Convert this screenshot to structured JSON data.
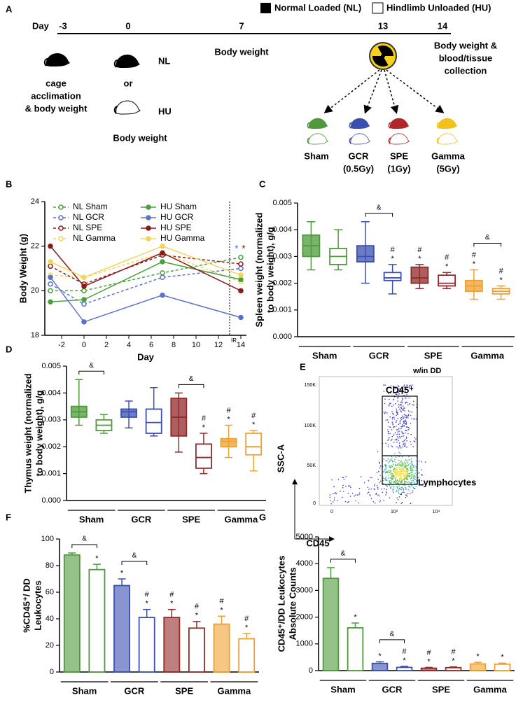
{
  "diagram": {
    "panel": "A",
    "legend": [
      "Normal Loaded (NL)",
      "Hindlimb Unloaded (HU)"
    ],
    "day_label": "Day",
    "days": [
      "-3",
      "0",
      "7",
      "13",
      "14"
    ],
    "mid_text": "Body weight",
    "acclimation": [
      "cage",
      "acclimation",
      "& body weight"
    ],
    "nl": "NL",
    "or": "or",
    "hu": "HU",
    "start_text": "Body weight",
    "end_text": [
      "Body weight &",
      "blood/tissue",
      "collection"
    ],
    "groups": [
      [
        "Sham"
      ],
      [
        "GCR",
        "(0.5Gy)"
      ],
      [
        "SPE",
        "(1Gy)"
      ],
      [
        "Gamma",
        "(5Gy)"
      ]
    ]
  },
  "flow": {
    "panel": "E",
    "gate_title": "w/in DD",
    "gate": "CD45⁺",
    "subgate": "Lymphocytes",
    "ylabel": "SSC-A",
    "xlabel": "CD45",
    "yticks": [
      "150K",
      "100K",
      "50K",
      "0"
    ],
    "xticks": [
      "0",
      "10³",
      "10⁴"
    ]
  },
  "chart_data": [
    {
      "panel": "B",
      "type": "line",
      "xlabel": "Day",
      "ylabel": [
        "Body Weight (g)"
      ],
      "x": [
        -3,
        0,
        7,
        14
      ],
      "xlim": [
        -3.5,
        14.5
      ],
      "xticks": [
        -2,
        0,
        2,
        4,
        6,
        8,
        10,
        12,
        14
      ],
      "ylim": [
        18,
        24
      ],
      "yticks": [
        18,
        20,
        22,
        24
      ],
      "vline": {
        "x": 13,
        "label": "IR"
      },
      "annotations": [
        {
          "text": "*",
          "color": "#5b72c6"
        },
        {
          "text": "*",
          "color": "#8b1a1a"
        }
      ],
      "series": [
        {
          "name": "NL Sham",
          "color": "#4aa03a",
          "dashed": true,
          "values": [
            20.0,
            20.0,
            20.8,
            21.5
          ]
        },
        {
          "name": "NL GCR",
          "color": "#5b72c6",
          "dashed": true,
          "values": [
            20.3,
            19.4,
            20.6,
            21.0
          ]
        },
        {
          "name": "NL SPE",
          "color": "#8b1a1a",
          "dashed": true,
          "values": [
            21.1,
            20.3,
            21.6,
            21.2
          ]
        },
        {
          "name": "NL Gamma",
          "color": "#f5d45c",
          "dashed": true,
          "values": [
            20.7,
            20.6,
            21.7,
            20.4
          ]
        },
        {
          "name": "HU Sham",
          "color": "#4aa03a",
          "dashed": false,
          "values": [
            19.5,
            19.6,
            21.3,
            20.5
          ]
        },
        {
          "name": "HU GCR",
          "color": "#5b72c6",
          "dashed": false,
          "values": [
            20.6,
            18.6,
            19.8,
            18.8
          ]
        },
        {
          "name": "HU SPE",
          "color": "#8b1a1a",
          "dashed": false,
          "values": [
            22.0,
            20.2,
            21.7,
            20.0
          ]
        },
        {
          "name": "HU Gamma",
          "color": "#f5d45c",
          "dashed": false,
          "values": [
            21.3,
            20.6,
            22.0,
            20.7
          ]
        }
      ]
    },
    {
      "panel": "C",
      "type": "box",
      "ylabel": [
        "Spleen weight (normalized",
        "to body weight), g/g"
      ],
      "categories": [
        "Sham",
        "GCR",
        "SPE",
        "Gamma"
      ],
      "colors": [
        "#4e9a3a",
        "#3b4fb0",
        "#922a2a",
        "#f0a030"
      ],
      "ylim": [
        0,
        0.005
      ],
      "yticks": [
        {
          "value": 0,
          "label": "0.000"
        },
        {
          "value": 0.001,
          "label": "0.001"
        },
        {
          "value": 0.002,
          "label": "0.002"
        },
        {
          "value": 0.003,
          "label": "0.003"
        },
        {
          "value": 0.004,
          "label": "0.004"
        },
        {
          "value": 0.005,
          "label": "0.005"
        }
      ],
      "brackets": [
        {
          "label": "&",
          "category": 1
        },
        {
          "label": "&",
          "category": 3
        }
      ],
      "series": [
        {
          "style": "filled",
          "min": [
            0.0025,
            0.002,
            0.0018,
            0.0014
          ],
          "q1": [
            0.003,
            0.0028,
            0.002,
            0.0017
          ],
          "median": [
            0.0034,
            0.003,
            0.0022,
            0.0019
          ],
          "q3": [
            0.0038,
            0.0034,
            0.0026,
            0.0021
          ],
          "max": [
            0.0043,
            0.0043,
            0.0027,
            0.0025
          ],
          "marks": [
            [],
            [],
            [
              "#",
              "*"
            ],
            [
              "#",
              "*"
            ]
          ]
        },
        {
          "style": "open",
          "min": [
            0.0025,
            0.0016,
            0.0018,
            0.0014
          ],
          "q1": [
            0.0027,
            0.0021,
            0.0019,
            0.0016
          ],
          "median": [
            0.003,
            0.0022,
            0.002,
            0.0017
          ],
          "q3": [
            0.0033,
            0.0024,
            0.0023,
            0.0018
          ],
          "max": [
            0.004,
            0.0027,
            0.0024,
            0.0019
          ],
          "marks": [
            [],
            [
              "#",
              "*"
            ],
            [
              "#",
              "*"
            ],
            [
              "#",
              "*"
            ]
          ]
        }
      ]
    },
    {
      "panel": "D",
      "type": "box",
      "ylabel": [
        "Thymus weight (normalized",
        "to body weight), g/g"
      ],
      "categories": [
        "Sham",
        "GCR",
        "SPE",
        "Gamma"
      ],
      "colors": [
        "#4e9a3a",
        "#3b4fb0",
        "#922a2a",
        "#f0a030"
      ],
      "ylim": [
        0,
        0.005
      ],
      "yticks": [
        {
          "value": 0,
          "label": "0.000"
        },
        {
          "value": 0.001,
          "label": "0.001"
        },
        {
          "value": 0.002,
          "label": "0.002"
        },
        {
          "value": 0.003,
          "label": "0.003"
        },
        {
          "value": 0.004,
          "label": "0.004"
        },
        {
          "value": 0.005,
          "label": "0.005"
        }
      ],
      "brackets": [
        {
          "label": "&",
          "category": 0
        },
        {
          "label": "&",
          "category": 2
        }
      ],
      "series": [
        {
          "style": "filled",
          "min": [
            0.0028,
            0.0027,
            0.0018,
            0.0016
          ],
          "q1": [
            0.0031,
            0.0031,
            0.0024,
            0.002
          ],
          "median": [
            0.0033,
            0.0033,
            0.0031,
            0.0022
          ],
          "q3": [
            0.0035,
            0.0034,
            0.0038,
            0.0023
          ],
          "max": [
            0.0045,
            0.0037,
            0.004,
            0.0028
          ],
          "marks": [
            [],
            [],
            [],
            [
              "#",
              "*"
            ]
          ]
        },
        {
          "style": "open",
          "min": [
            0.0025,
            0.0024,
            0.001,
            0.0011
          ],
          "q1": [
            0.0026,
            0.0025,
            0.0012,
            0.0017
          ],
          "median": [
            0.0028,
            0.0029,
            0.0016,
            0.002
          ],
          "q3": [
            0.003,
            0.0034,
            0.0021,
            0.0025
          ],
          "max": [
            0.0032,
            0.0042,
            0.0025,
            0.0026
          ],
          "marks": [
            [],
            [],
            [
              "#",
              "*"
            ],
            [
              "#",
              "*"
            ]
          ]
        }
      ]
    },
    {
      "panel": "F",
      "type": "bar",
      "ylabel": [
        "%CD45⁺/ DD",
        "Leukocytes"
      ],
      "categories": [
        "Sham",
        "GCR",
        "SPE",
        "Gamma"
      ],
      "colors": [
        "#4e9a3a",
        "#3b4fb0",
        "#922a2a",
        "#f0a030"
      ],
      "ylim": [
        0,
        100
      ],
      "yticks": [
        0,
        20,
        40,
        60,
        80,
        100
      ],
      "brackets": [
        {
          "label": "&",
          "category": 0
        },
        {
          "label": "&",
          "category": 1
        }
      ],
      "series": [
        {
          "style": "filled",
          "values": [
            88,
            65,
            41,
            36
          ],
          "errors": [
            1.5,
            5,
            6,
            6
          ],
          "marks": [
            [],
            [
              "*"
            ],
            [
              "#",
              "*"
            ],
            [
              "#",
              "*"
            ]
          ]
        },
        {
          "style": "open",
          "values": [
            77,
            41,
            33,
            25
          ],
          "errors": [
            4,
            6,
            5,
            4
          ],
          "marks": [
            [
              "*"
            ],
            [
              "#",
              "*"
            ],
            [
              "#",
              "*"
            ],
            [
              "#",
              "*"
            ]
          ]
        }
      ]
    },
    {
      "panel": "G",
      "type": "bar",
      "ylabel": [
        "CD45⁺/DD Leukocytes",
        "Absolute Counts"
      ],
      "categories": [
        "Sham",
        "GCR",
        "SPE",
        "Gamma"
      ],
      "colors": [
        "#4e9a3a",
        "#3b4fb0",
        "#922a2a",
        "#f0a030"
      ],
      "ylim": [
        0,
        5000
      ],
      "yticks": [
        0,
        1000,
        2000,
        3000,
        4000,
        5000
      ],
      "brackets": [
        {
          "label": "&",
          "category": 0
        },
        {
          "label": "&",
          "category": 1
        }
      ],
      "series": [
        {
          "style": "filled",
          "values": [
            3450,
            270,
            90,
            250
          ],
          "errors": [
            400,
            60,
            30,
            60
          ],
          "marks": [
            [],
            [
              "*"
            ],
            [
              "#",
              "*"
            ],
            [
              "*"
            ]
          ]
        },
        {
          "style": "open",
          "values": [
            1600,
            120,
            110,
            240
          ],
          "errors": [
            180,
            40,
            30,
            40
          ],
          "marks": [
            [
              "*"
            ],
            [
              "#",
              "*"
            ],
            [
              "#",
              "*"
            ],
            [
              "*"
            ]
          ]
        }
      ]
    }
  ]
}
